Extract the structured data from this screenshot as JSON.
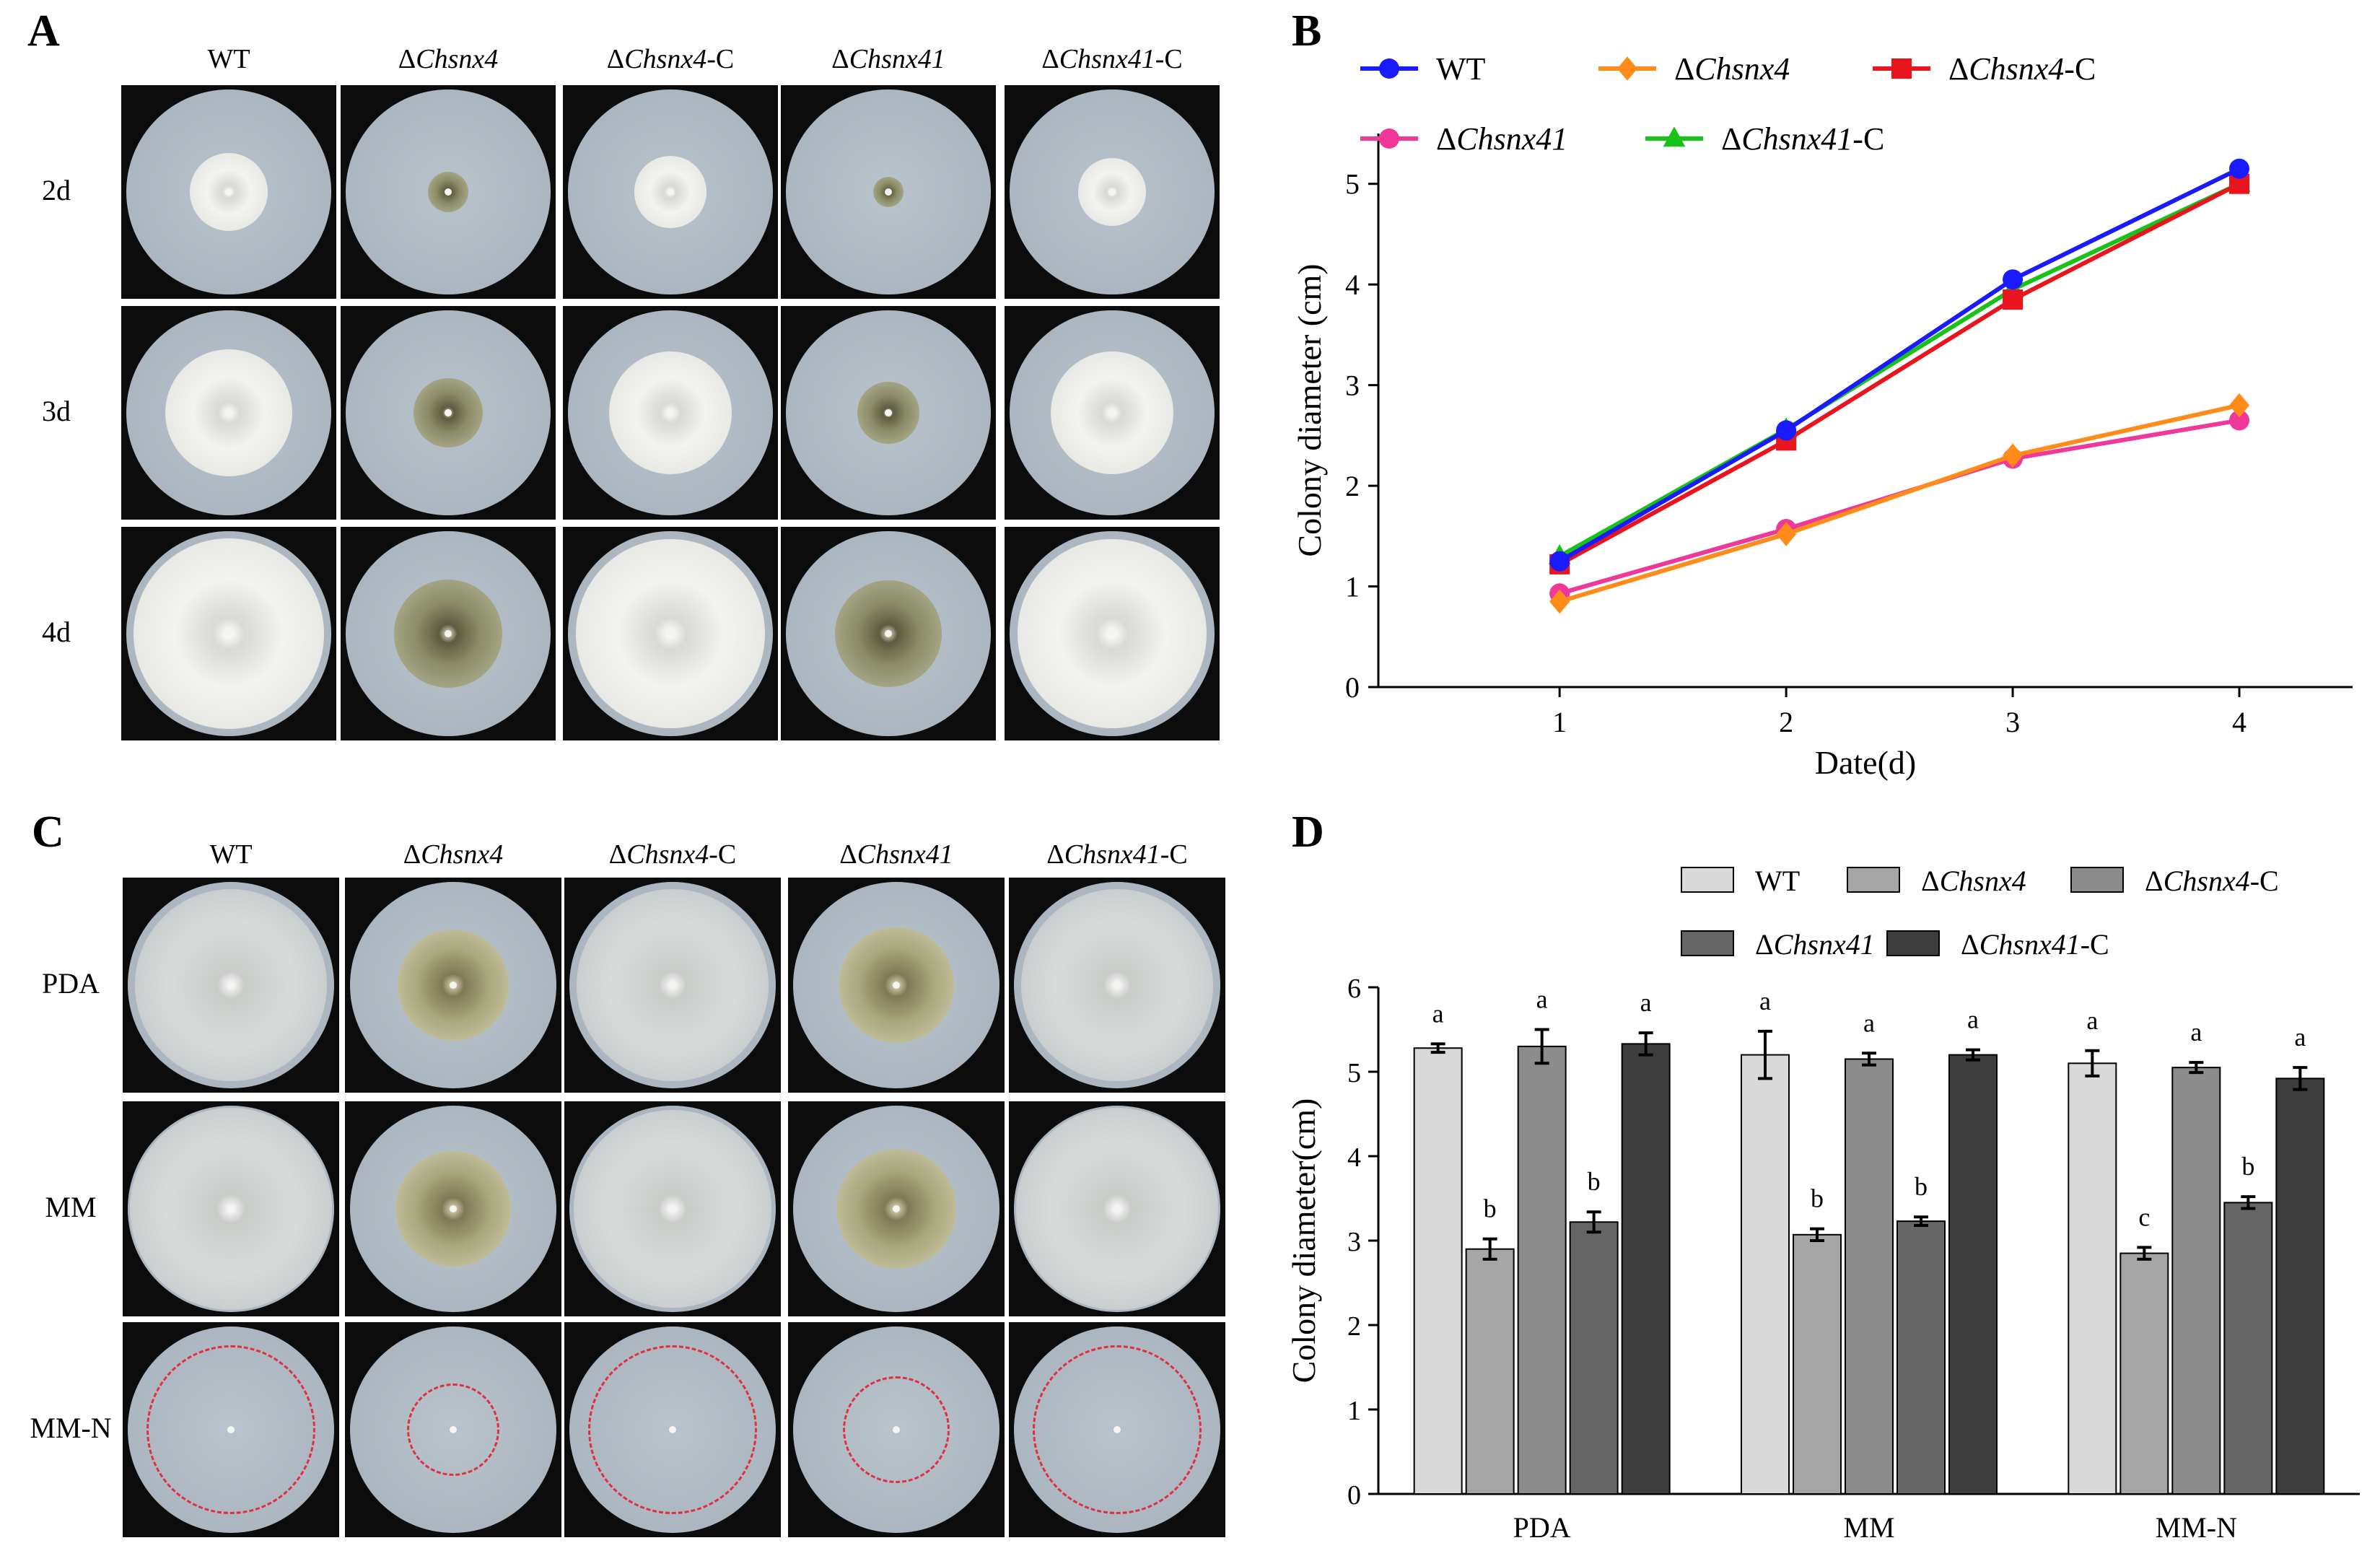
{
  "panels": {
    "a": "A",
    "b": "B",
    "c": "C",
    "d": "D"
  },
  "plates_top": {
    "columns": [
      {
        "prefix": "",
        "name": "WT",
        "suffix": ""
      },
      {
        "prefix": "Δ",
        "name": "Chsnx4",
        "suffix": ""
      },
      {
        "prefix": "Δ",
        "name": "Chsnx4",
        "suffix": "-C"
      },
      {
        "prefix": "Δ",
        "name": "Chsnx41",
        "suffix": ""
      },
      {
        "prefix": "Δ",
        "name": "Chsnx41",
        "suffix": "-C"
      }
    ],
    "rows": [
      "2d",
      "3d",
      "4d"
    ]
  },
  "plates_bottom": {
    "columns": [
      {
        "prefix": "",
        "name": "WT",
        "suffix": ""
      },
      {
        "prefix": "Δ",
        "name": "Chsnx4",
        "suffix": ""
      },
      {
        "prefix": "Δ",
        "name": "Chsnx4",
        "suffix": "-C"
      },
      {
        "prefix": "Δ",
        "name": "Chsnx41",
        "suffix": ""
      },
      {
        "prefix": "Δ",
        "name": "Chsnx41",
        "suffix": "-C"
      }
    ],
    "rows": [
      "PDA",
      "MM",
      "MM-N"
    ]
  },
  "colors": {
    "wt": "#1a1aff",
    "chsnx4": "#ff8c1a",
    "chsnx4c": "#e8141e",
    "chsnx41": "#f0389a",
    "chsnx41c": "#19c219",
    "bar_wt": "#d9d9d9",
    "bar_chsnx4": "#a6a6a6",
    "bar_chsnx4c": "#8c8c8c",
    "bar_chsnx41": "#666666",
    "bar_chsnx41c": "#3d3d3d",
    "ring": "#e03040"
  },
  "chart_data": [
    {
      "type": "line",
      "title": "",
      "xlabel": "Date(d)",
      "ylabel": "Colony diameter (cm)",
      "x": [
        1,
        2,
        3,
        4
      ],
      "xlim": [
        0.2,
        4.5
      ],
      "ylim": [
        0,
        5.5
      ],
      "xticks": [
        "1",
        "2",
        "3",
        "4"
      ],
      "yticks": [
        "0",
        "1",
        "2",
        "3",
        "4",
        "5"
      ],
      "legend_position": "top",
      "series": [
        {
          "prefix": "",
          "name": "WT",
          "suffix": "",
          "color": "#1a1aff",
          "marker": "circle",
          "values": [
            1.25,
            2.55,
            4.05,
            5.15
          ]
        },
        {
          "prefix": "Δ",
          "name": "Chsnx4",
          "suffix": "",
          "color": "#ff8c1a",
          "marker": "diamond",
          "values": [
            0.85,
            1.52,
            2.3,
            2.8
          ]
        },
        {
          "prefix": "Δ",
          "name": "Chsnx4",
          "suffix": "-C",
          "color": "#e8141e",
          "marker": "square",
          "values": [
            1.22,
            2.45,
            3.85,
            5.0
          ]
        },
        {
          "prefix": "Δ",
          "name": "Chsnx41",
          "suffix": "",
          "color": "#f0389a",
          "marker": "circle",
          "values": [
            0.93,
            1.57,
            2.27,
            2.65
          ]
        },
        {
          "prefix": "Δ",
          "name": "Chsnx41",
          "suffix": "-C",
          "color": "#19c219",
          "marker": "triangle",
          "values": [
            1.3,
            2.56,
            3.95,
            5.0
          ]
        }
      ]
    },
    {
      "type": "bar",
      "title": "",
      "xlabel": "",
      "ylabel": "Colony diameter(cm)",
      "categories": [
        "PDA",
        "MM",
        "MM-N"
      ],
      "ylim": [
        0,
        6
      ],
      "yticks": [
        "0",
        "1",
        "2",
        "3",
        "4",
        "5",
        "6"
      ],
      "legend_position": "top",
      "series": [
        {
          "prefix": "",
          "name": "WT",
          "suffix": "",
          "color": "#d9d9d9",
          "values": [
            5.28,
            5.2,
            5.1
          ],
          "errors": [
            0.05,
            0.28,
            0.15
          ],
          "letters": [
            "a",
            "a",
            "a"
          ]
        },
        {
          "prefix": "Δ",
          "name": "Chsnx4",
          "suffix": "",
          "color": "#a6a6a6",
          "values": [
            2.9,
            3.07,
            2.85
          ],
          "errors": [
            0.12,
            0.07,
            0.07
          ],
          "letters": [
            "b",
            "b",
            "c"
          ]
        },
        {
          "prefix": "Δ",
          "name": "Chsnx4",
          "suffix": "-C",
          "color": "#8c8c8c",
          "values": [
            5.3,
            5.15,
            5.05
          ],
          "errors": [
            0.2,
            0.07,
            0.06
          ],
          "letters": [
            "a",
            "a",
            "a"
          ]
        },
        {
          "prefix": "Δ",
          "name": "Chsnx41",
          "suffix": "",
          "color": "#666666",
          "values": [
            3.22,
            3.23,
            3.45
          ],
          "errors": [
            0.12,
            0.05,
            0.07
          ],
          "letters": [
            "b",
            "b",
            "b"
          ]
        },
        {
          "prefix": "Δ",
          "name": "Chsnx41",
          "suffix": "-C",
          "color": "#3d3d3d",
          "values": [
            5.33,
            5.2,
            4.92
          ],
          "errors": [
            0.13,
            0.06,
            0.13
          ],
          "letters": [
            "a",
            "a",
            "a"
          ]
        }
      ]
    }
  ]
}
